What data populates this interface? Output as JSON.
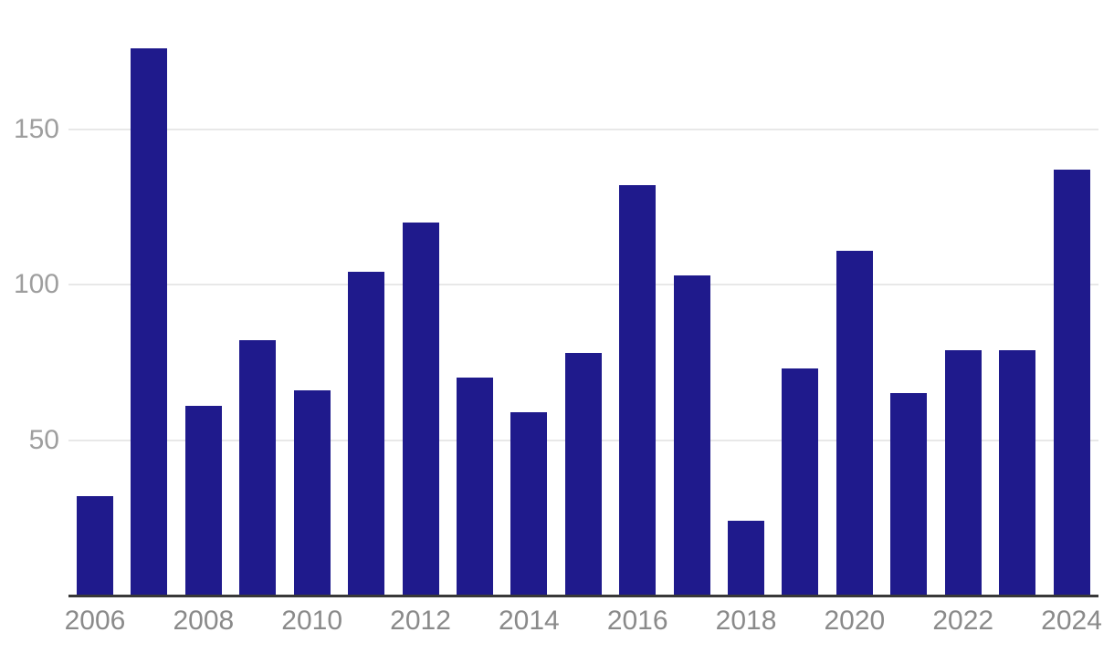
{
  "chart_data": {
    "type": "bar",
    "title": "",
    "xlabel": "",
    "ylabel": "",
    "categories": [
      "2006",
      "2007",
      "2008",
      "2009",
      "2010",
      "2011",
      "2012",
      "2013",
      "2014",
      "2015",
      "2016",
      "2017",
      "2018",
      "2019",
      "2020",
      "2021",
      "2022",
      "2023",
      "2024"
    ],
    "values": [
      32,
      176,
      61,
      82,
      66,
      104,
      120,
      70,
      59,
      78,
      132,
      103,
      24,
      73,
      111,
      65,
      79,
      79,
      137
    ],
    "ylim": [
      0,
      190
    ],
    "yticks": [
      50,
      100,
      150
    ],
    "ytick_labels": [
      "50",
      "100",
      "150"
    ],
    "xtick_indices": [
      0,
      2,
      4,
      6,
      8,
      10,
      12,
      14,
      16,
      18
    ],
    "xtick_labels": [
      "2006",
      "2008",
      "2010",
      "2012",
      "2014",
      "2016",
      "2018",
      "2020",
      "2022",
      "2024"
    ],
    "grid": true,
    "legend": false,
    "colors": {
      "bar": "#1f1a8c",
      "gridline": "#e8e8e8",
      "axis_line": "#383838",
      "ytick_text": "#9e9e9e",
      "xtick_text": "#8a8a8a",
      "background": "#ffffff"
    }
  }
}
